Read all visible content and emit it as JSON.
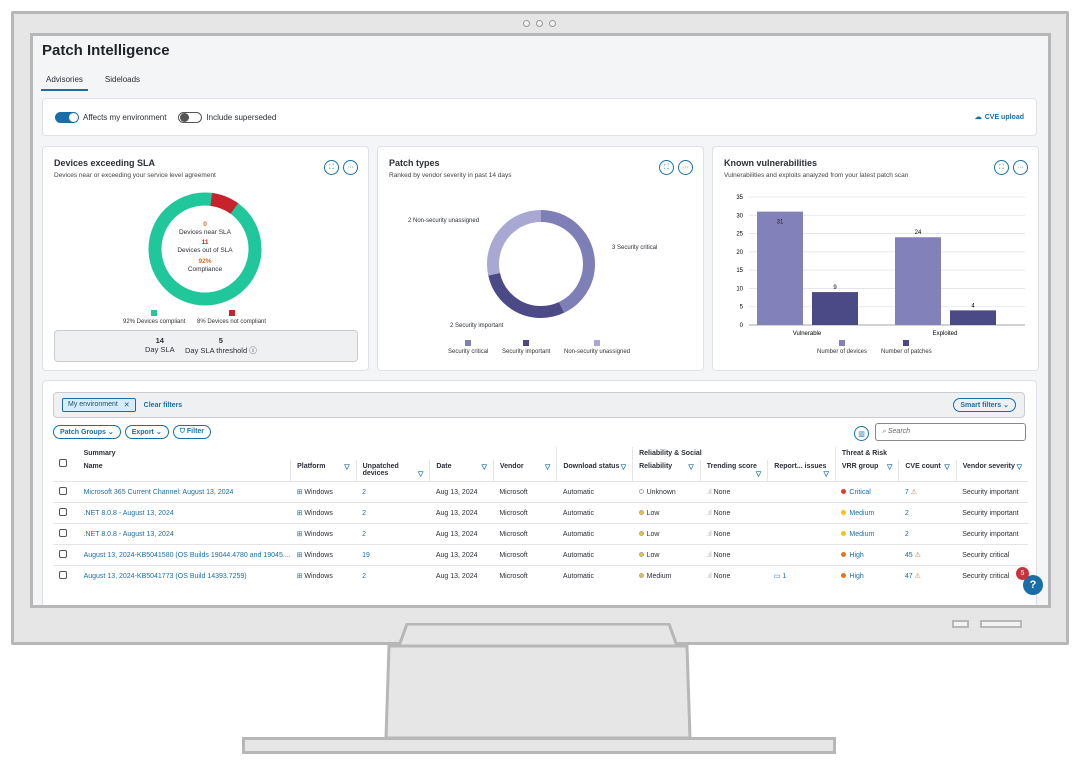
{
  "app": {
    "title": "Patch Intelligence"
  },
  "tabs": [
    {
      "label": "Advisories",
      "active": true
    },
    {
      "label": "Sideloads",
      "active": false
    }
  ],
  "toggles": {
    "affects_label": "Affects my environment",
    "affects_on": true,
    "superseded_label": "Include superseded",
    "superseded_on": false,
    "cve_upload": "CVE upload"
  },
  "sla_card": {
    "title": "Devices exceeding SLA",
    "subtitle": "Devices near or exceeding your service level agreement",
    "near_value": "0",
    "near_label": "Devices near SLA",
    "out_value": "11",
    "out_label": "Devices out of SLA",
    "compliance_value": "92%",
    "compliance_label": "Compliance",
    "legend_compliant": "92% Devices compliant",
    "legend_not": "8% Devices not compliant",
    "day_sla_value": "14",
    "day_sla_label": "Day SLA",
    "threshold_value": "5",
    "threshold_label": "Day SLA threshold",
    "compliant_pct": 92,
    "colors": {
      "compliant": "#1fc79a",
      "not": "#c8232c"
    }
  },
  "patch_card": {
    "title": "Patch types",
    "subtitle": "Ranked by vendor severity in past 14 days",
    "label_nonsec": "2 Non-security unassigned",
    "label_crit": "3 Security critical",
    "label_imp": "2 Security important",
    "legend": [
      "Security critical",
      "Security important",
      "Non-security unassigned"
    ],
    "colors": {
      "critical": "#7f7fb8",
      "important": "#4c4a86",
      "nonsec": "#a9a8d2"
    }
  },
  "vuln_card": {
    "title": "Known vulnerabilities",
    "subtitle": "Vulnerabilities and exploits analyzed from your latest patch scan",
    "legend": [
      "Number of devices",
      "Number of patches"
    ]
  },
  "chart_data": {
    "type": "bar",
    "categories": [
      "Vulnerable",
      "Exploited"
    ],
    "series": [
      {
        "name": "Number of devices",
        "values": [
          31,
          24
        ],
        "color": "#8281b9"
      },
      {
        "name": "Number of patches",
        "values": [
          9,
          4
        ],
        "color": "#4c4a86"
      }
    ],
    "ylim": [
      0,
      35
    ],
    "yticks": [
      0,
      5,
      10,
      15,
      20,
      25,
      30,
      35
    ],
    "grid": true,
    "legend": "bottom"
  },
  "filters": {
    "chip": "My environment",
    "clear": "Clear filters",
    "smart": "Smart filters",
    "patch_groups": "Patch Groups",
    "export": "Export",
    "filter": "Filter",
    "search_placeholder": "Search"
  },
  "table": {
    "group_summary": "Summary",
    "group_reliability": "Reliability & Social",
    "group_threat": "Threat & Risk",
    "headers": [
      "Name",
      "Platform",
      "Unpatched devices",
      "Date",
      "Vendor",
      "Download status",
      "Reliability",
      "Trending score",
      "Report... issues",
      "VRR group",
      "CVE count",
      "Vendor severity"
    ],
    "rows": [
      {
        "name": "Microsoft 365 Current Channel: August 13, 2024",
        "platform": "Windows",
        "unpatched": "2",
        "date": "Aug 13, 2024",
        "vendor": "Microsoft",
        "download": "Automatic",
        "reliability": "Unknown",
        "trending": "None",
        "issues": "",
        "vrr": "Critical",
        "cve": "7",
        "severity": "Security important"
      },
      {
        "name": ".NET 8.0.8 - August 13, 2024",
        "platform": "Windows",
        "unpatched": "2",
        "date": "Aug 13, 2024",
        "vendor": "Microsoft",
        "download": "Automatic",
        "reliability": "Low",
        "trending": "None",
        "issues": "",
        "vrr": "Medium",
        "cve": "2",
        "severity": "Security important"
      },
      {
        "name": ".NET 8.0.8 - August 13, 2024",
        "platform": "Windows",
        "unpatched": "2",
        "date": "Aug 13, 2024",
        "vendor": "Microsoft",
        "download": "Automatic",
        "reliability": "Low",
        "trending": "None",
        "issues": "",
        "vrr": "Medium",
        "cve": "2",
        "severity": "Security important"
      },
      {
        "name": "August 13, 2024-KB5041580 (OS Builds 19044.4780 and 19045....",
        "platform": "Windows",
        "unpatched": "19",
        "date": "Aug 13, 2024",
        "vendor": "Microsoft",
        "download": "Automatic",
        "reliability": "Low",
        "trending": "None",
        "issues": "",
        "vrr": "High",
        "cve": "45",
        "severity": "Security critical"
      },
      {
        "name": "August 13, 2024-KB5041773 (OS Build 14393.7259)",
        "platform": "Windows",
        "unpatched": "2",
        "date": "Aug 13, 2024",
        "vendor": "Microsoft",
        "download": "Automatic",
        "reliability": "Medium",
        "trending": "None",
        "issues": "1",
        "vrr": "High",
        "cve": "47",
        "severity": "Security critical"
      }
    ]
  },
  "help": {
    "badge": "5",
    "label": "?"
  }
}
